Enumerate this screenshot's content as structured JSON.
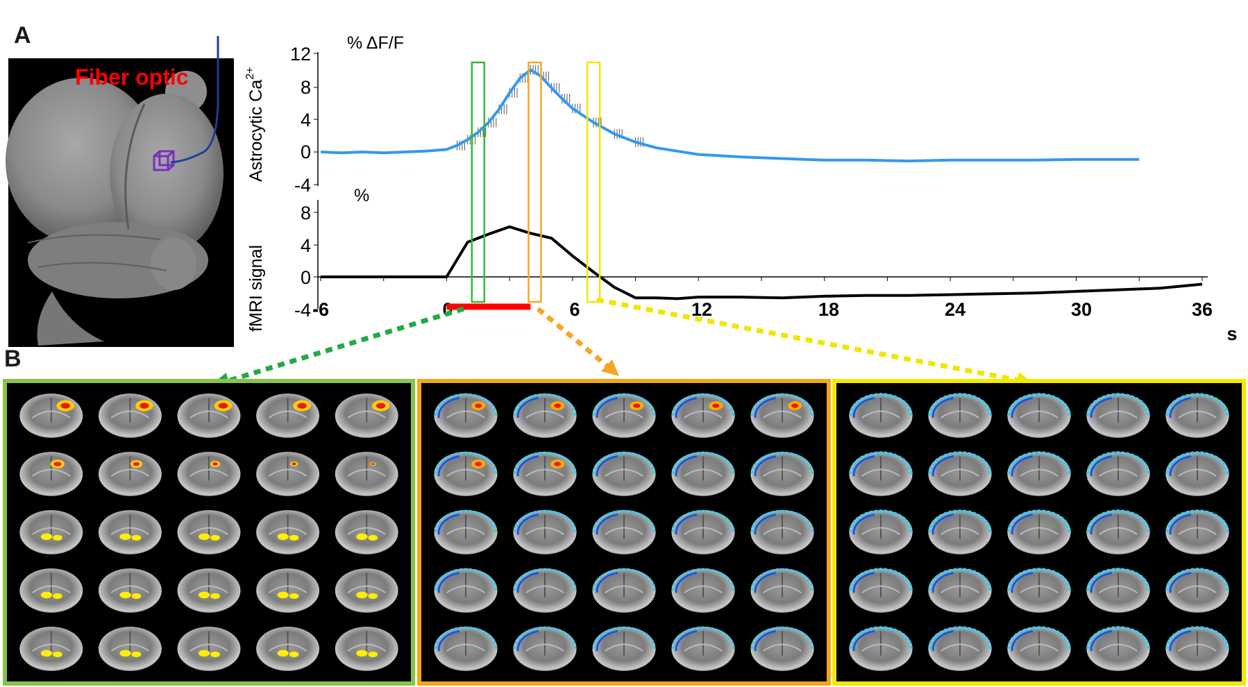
{
  "panel_a_label": "A",
  "panel_b_label": "B",
  "fiber_label": "Fiber optic",
  "colors": {
    "calcium_trace": "#3399ee",
    "fmri_trace": "#000000",
    "stimulus_bar": "#ff0000",
    "window_early": "#33bb33",
    "window_peak": "#f5a623",
    "window_late": "#f2e600",
    "frame_early": "#88c34a",
    "frame_peak": "#f0a818",
    "frame_late": "#f2ea00",
    "fiber": "#1f3d99",
    "voxel": "#7a2fbf"
  },
  "chart_data": [
    {
      "type": "line",
      "unit_label": "% ΔF/F",
      "ylabel_main": "Astrocytic  Ca",
      "ylabel_sup": "2+",
      "ylim": [
        -4,
        12
      ],
      "yticks": [
        "12",
        "8",
        "4",
        "0",
        "-4"
      ],
      "xlim": [
        -6,
        36
      ],
      "error_bars": true,
      "series": [
        {
          "x": [
            -6,
            -5,
            -4,
            -3,
            -2,
            -1,
            0,
            0.5,
            1,
            1.5,
            2,
            2.5,
            3,
            3.5,
            4,
            4.5,
            5,
            5.5,
            6,
            7,
            8,
            9,
            10,
            12,
            14,
            16,
            18,
            20,
            22,
            24,
            26,
            28,
            30,
            32,
            33
          ],
          "values": [
            0,
            -0.1,
            0,
            -0.1,
            0,
            0.1,
            0.3,
            0.8,
            1.5,
            2.4,
            3.6,
            5.2,
            7.2,
            9.0,
            10.0,
            9.2,
            7.8,
            6.5,
            5.3,
            3.6,
            2.2,
            1.2,
            0.5,
            -0.3,
            -0.6,
            -0.8,
            -1.0,
            -1.0,
            -1.1,
            -1.0,
            -1.0,
            -1.0,
            -0.9,
            -0.9,
            -0.9
          ]
        }
      ]
    },
    {
      "type": "line",
      "unit_label": "%",
      "ylabel_main": "fMRI  signal",
      "ylim": [
        -4,
        10
      ],
      "yticks": [
        "8",
        "4",
        "0",
        "-4"
      ],
      "xlim": [
        -6,
        36
      ],
      "xticks": [
        "-6",
        "0",
        "6",
        "12",
        "18",
        "24",
        "30",
        "36"
      ],
      "xlabel": "s",
      "stimulus": [
        0,
        4
      ],
      "series": [
        {
          "x": [
            -6,
            -4,
            -2,
            0,
            1,
            2,
            3,
            4,
            5,
            6,
            7,
            8,
            9,
            10,
            11,
            12,
            14,
            16,
            18,
            20,
            22,
            24,
            26,
            28,
            30,
            32,
            34,
            36
          ],
          "values": [
            0,
            0,
            0,
            0,
            4.3,
            5.3,
            6.2,
            5.4,
            4.8,
            2.6,
            0.6,
            -1.3,
            -2.6,
            -2.6,
            -2.7,
            -2.5,
            -2.5,
            -2.6,
            -2.4,
            -2.3,
            -2.3,
            -2.2,
            -2.1,
            -2.0,
            -1.8,
            -1.6,
            -1.4,
            -0.9
          ]
        }
      ],
      "highlight_windows": [
        {
          "name": "early",
          "x_center": 1.5
        },
        {
          "name": "peak",
          "x_center": 4.2
        },
        {
          "name": "late",
          "x_center": 7.0
        }
      ]
    }
  ],
  "montages": [
    {
      "name": "early",
      "rows": 5,
      "cols": 5,
      "activation": "positive"
    },
    {
      "name": "peak",
      "rows": 5,
      "cols": 5,
      "activation": "mixed"
    },
    {
      "name": "late",
      "rows": 5,
      "cols": 5,
      "activation": "negative"
    }
  ]
}
